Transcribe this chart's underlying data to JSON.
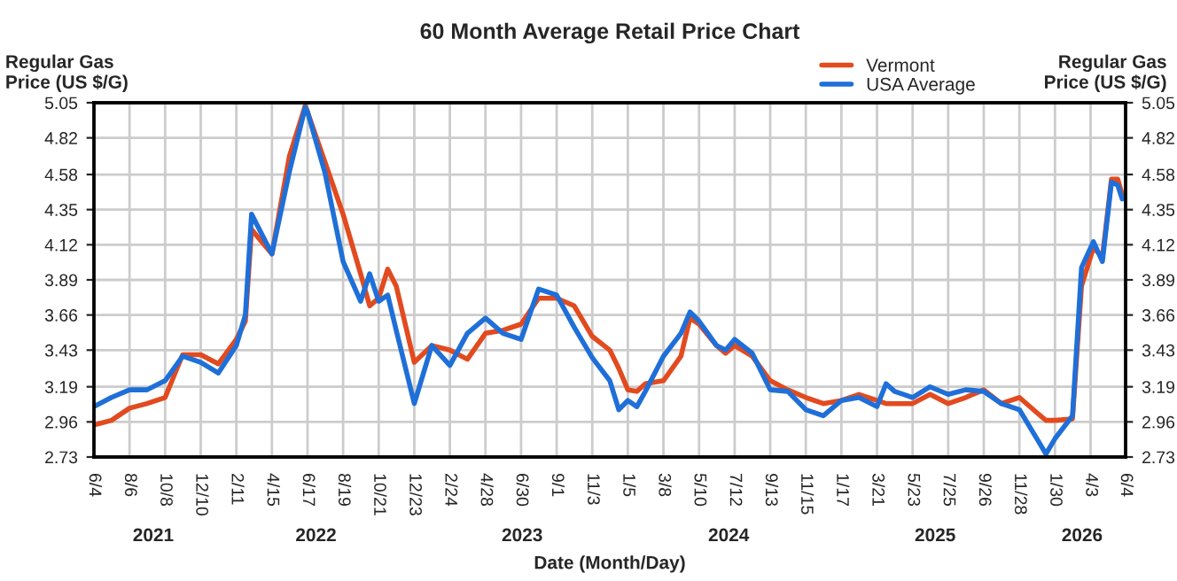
{
  "chart_data": {
    "type": "line",
    "title": "60 Month Average Retail Price Chart",
    "xlabel": "Date (Month/Day)",
    "ylabel": "Regular Gas\nPrice (US $/G)",
    "y2label": "Regular Gas\nPrice (US $/G)",
    "x": [
      "2021-06-04",
      "2021-07-05",
      "2021-08-06",
      "2021-09-06",
      "2021-10-08",
      "2021-11-08",
      "2021-12-10",
      "2022-01-10",
      "2022-02-11",
      "2022-02-27",
      "2022-03-10",
      "2022-04-15",
      "2022-05-16",
      "2022-06-13",
      "2022-06-17",
      "2022-07-18",
      "2022-08-19",
      "2022-09-19",
      "2022-10-05",
      "2022-10-21",
      "2022-11-06",
      "2022-11-21",
      "2022-12-23",
      "2023-01-23",
      "2023-02-24",
      "2023-03-27",
      "2023-04-28",
      "2023-05-29",
      "2023-06-30",
      "2023-07-31",
      "2023-09-01",
      "2023-10-02",
      "2023-11-03",
      "2023-12-04",
      "2023-12-20",
      "2024-01-05",
      "2024-01-21",
      "2024-02-05",
      "2024-03-08",
      "2024-04-08",
      "2024-04-24",
      "2024-05-10",
      "2024-06-10",
      "2024-06-26",
      "2024-07-12",
      "2024-08-12",
      "2024-09-13",
      "2024-10-14",
      "2024-11-15",
      "2024-12-16",
      "2025-01-17",
      "2025-02-17",
      "2025-03-21",
      "2025-04-06",
      "2025-04-21",
      "2025-05-23",
      "2025-06-23",
      "2025-07-25",
      "2025-08-25",
      "2025-09-26",
      "2025-10-27",
      "2025-11-28",
      "2025-12-29",
      "2026-01-14",
      "2026-01-30",
      "2026-03-02",
      "2026-03-18",
      "2026-04-08",
      "2026-04-24",
      "2026-05-10",
      "2026-05-21",
      "2026-05-29"
    ],
    "series": [
      {
        "name": "Vermont",
        "color": "#e24a1f",
        "values": [
          2.94,
          2.97,
          3.05,
          3.08,
          3.12,
          3.4,
          3.4,
          3.34,
          3.5,
          3.62,
          4.22,
          4.06,
          4.7,
          5.03,
          4.99,
          4.66,
          4.32,
          3.93,
          3.72,
          3.77,
          3.96,
          3.85,
          3.35,
          3.46,
          3.43,
          3.37,
          3.54,
          3.56,
          3.6,
          3.77,
          3.77,
          3.72,
          3.52,
          3.43,
          3.31,
          3.17,
          3.16,
          3.21,
          3.23,
          3.39,
          3.64,
          3.6,
          3.46,
          3.41,
          3.46,
          3.39,
          3.23,
          3.17,
          3.12,
          3.08,
          3.1,
          3.14,
          3.1,
          3.08,
          3.08,
          3.08,
          3.14,
          3.08,
          3.12,
          3.17,
          3.08,
          3.12,
          3.02,
          2.97,
          2.97,
          2.98,
          3.85,
          4.1,
          4.04,
          4.55,
          4.55,
          4.45
        ]
      },
      {
        "name": "USA Average",
        "color": "#1f6fd8",
        "values": [
          3.06,
          3.12,
          3.17,
          3.17,
          3.23,
          3.39,
          3.35,
          3.28,
          3.46,
          3.66,
          4.32,
          4.06,
          4.6,
          5.02,
          4.99,
          4.59,
          4.01,
          3.75,
          3.93,
          3.75,
          3.79,
          3.56,
          3.08,
          3.46,
          3.33,
          3.54,
          3.64,
          3.54,
          3.5,
          3.83,
          3.79,
          3.58,
          3.38,
          3.23,
          3.04,
          3.1,
          3.06,
          3.16,
          3.39,
          3.54,
          3.68,
          3.62,
          3.46,
          3.43,
          3.5,
          3.41,
          3.17,
          3.16,
          3.04,
          3.0,
          3.1,
          3.12,
          3.06,
          3.21,
          3.16,
          3.12,
          3.19,
          3.14,
          3.17,
          3.16,
          3.08,
          3.04,
          2.85,
          2.75,
          2.85,
          3.0,
          3.97,
          4.14,
          4.01,
          4.53,
          4.51,
          4.42
        ]
      }
    ],
    "xlim": [
      "2021-06-04",
      "2026-06-04"
    ],
    "xticks": [
      {
        "value": "2021-06-04",
        "label": "6/4"
      },
      {
        "value": "2021-08-06",
        "label": "8/6"
      },
      {
        "value": "2021-10-08",
        "label": "10/8"
      },
      {
        "value": "2021-12-10",
        "label": "12/10"
      },
      {
        "value": "2022-02-11",
        "label": "2/11"
      },
      {
        "value": "2022-04-15",
        "label": "4/15"
      },
      {
        "value": "2022-06-17",
        "label": "6/17"
      },
      {
        "value": "2022-08-19",
        "label": "8/19"
      },
      {
        "value": "2022-10-21",
        "label": "10/21"
      },
      {
        "value": "2022-12-23",
        "label": "12/23"
      },
      {
        "value": "2023-02-24",
        "label": "2/24"
      },
      {
        "value": "2023-04-28",
        "label": "4/28"
      },
      {
        "value": "2023-06-30",
        "label": "6/30"
      },
      {
        "value": "2023-09-01",
        "label": "9/1"
      },
      {
        "value": "2023-11-03",
        "label": "11/3"
      },
      {
        "value": "2024-01-05",
        "label": "1/5"
      },
      {
        "value": "2024-03-08",
        "label": "3/8"
      },
      {
        "value": "2024-05-10",
        "label": "5/10"
      },
      {
        "value": "2024-07-12",
        "label": "7/12"
      },
      {
        "value": "2024-09-13",
        "label": "9/13"
      },
      {
        "value": "2024-11-15",
        "label": "11/15"
      },
      {
        "value": "2025-01-17",
        "label": "1/17"
      },
      {
        "value": "2025-03-21",
        "label": "3/21"
      },
      {
        "value": "2025-05-23",
        "label": "5/23"
      },
      {
        "value": "2025-07-25",
        "label": "7/25"
      },
      {
        "value": "2025-09-26",
        "label": "9/26"
      },
      {
        "value": "2025-11-28",
        "label": "11/28"
      },
      {
        "value": "2026-01-30",
        "label": "1/30"
      },
      {
        "value": "2026-04-03",
        "label": "4/3"
      },
      {
        "value": "2026-06-04",
        "label": "6/4"
      }
    ],
    "ylim": [
      2.73,
      5.05
    ],
    "yticks": [
      2.73,
      2.96,
      3.19,
      3.43,
      3.66,
      3.89,
      4.12,
      4.35,
      4.58,
      4.82,
      5.05
    ],
    "y2lim": [
      2.73,
      5.05
    ],
    "y2ticks": [
      2.73,
      2.96,
      3.19,
      3.43,
      3.66,
      3.89,
      4.12,
      4.35,
      4.58,
      4.82,
      5.05
    ],
    "annotations": [
      "2021",
      "2022",
      "2023",
      "2024",
      "2025",
      "2026"
    ],
    "grid": true,
    "legend": "top right",
    "line_style": "solid",
    "marker": "none"
  }
}
